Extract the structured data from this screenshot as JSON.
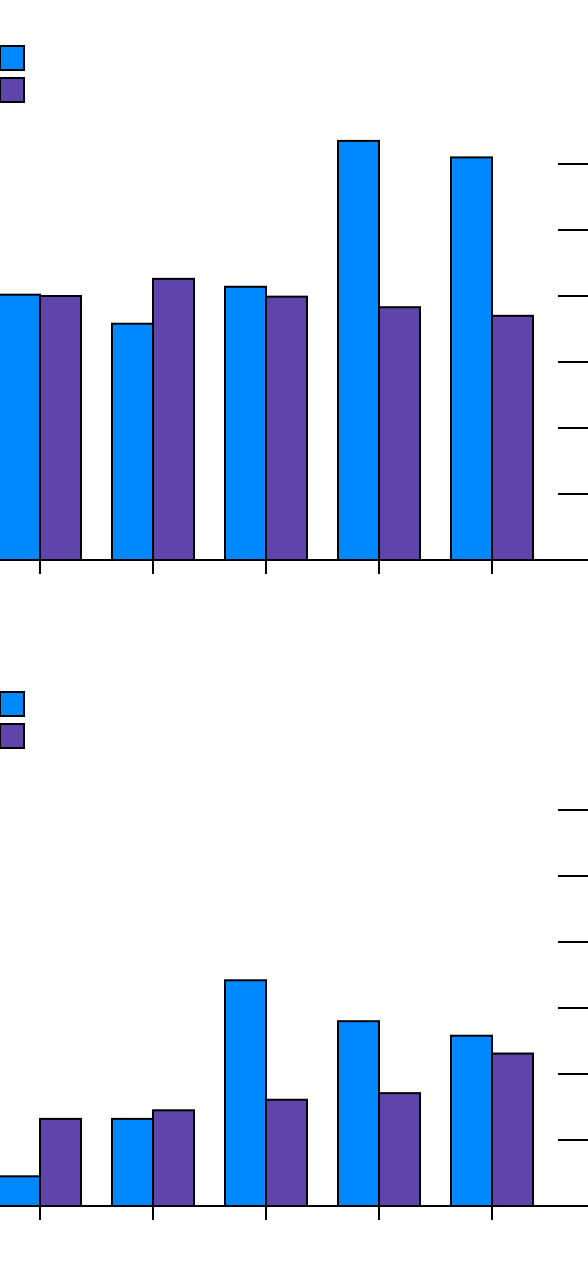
{
  "colors": {
    "series1": "#0088ff",
    "series2": "#5e44ab",
    "stroke": "#000000",
    "axis": "#000000"
  },
  "chart_data": [
    {
      "type": "bar",
      "title": "",
      "xlabel": "",
      "ylabel": "",
      "categories": [
        "",
        "",
        "",
        "",
        ""
      ],
      "ylim": [
        0,
        6
      ],
      "yticks": [
        1,
        2,
        3,
        4,
        5,
        6
      ],
      "grid": false,
      "legend": "top-left",
      "series": [
        {
          "values": [
            4.02,
            3.58,
            4.14,
            6.35,
            6.1
          ]
        },
        {
          "values": [
            4.0,
            4.26,
            3.99,
            3.83,
            3.7
          ]
        }
      ]
    },
    {
      "type": "bar",
      "title": "",
      "xlabel": "",
      "ylabel": "",
      "categories": [
        "",
        "",
        "",
        "",
        ""
      ],
      "ylim": [
        0,
        6
      ],
      "yticks": [
        1,
        2,
        3,
        4,
        5,
        6
      ],
      "grid": false,
      "legend": "top-left",
      "series": [
        {
          "values": [
            0.45,
            1.32,
            3.42,
            2.8,
            2.58
          ]
        },
        {
          "values": [
            1.32,
            1.45,
            1.61,
            1.71,
            2.31
          ]
        }
      ]
    }
  ]
}
